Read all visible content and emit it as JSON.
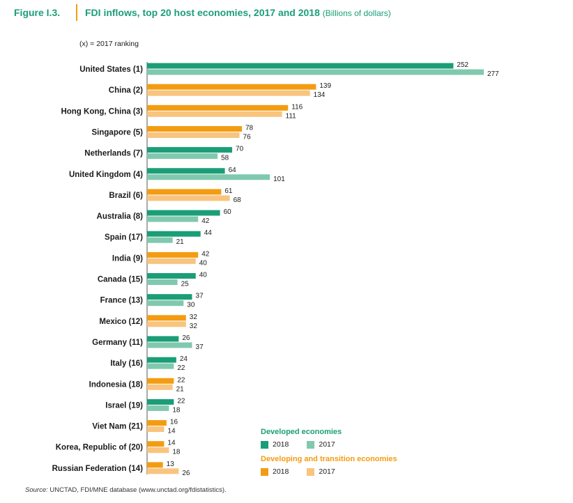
{
  "figure": {
    "label": "Figure I.3.",
    "title": "FDI inflows, top 20 host economies, 2017 and 2018",
    "units": "(Billions of dollars)"
  },
  "ranking_note": "(x) = 2017 ranking",
  "legend": {
    "developed": {
      "title": "Developed economies",
      "y2018": "2018",
      "y2017": "2017"
    },
    "developing": {
      "title": "Developing and transition economies",
      "y2018": "2018",
      "y2017": "2017"
    }
  },
  "source": {
    "label": "Source:",
    "text": " UNCTAD, FDI/MNE database (www.unctad.org/fdistatistics)."
  },
  "colors": {
    "developed_2018": "#1b9e77",
    "developed_2017": "#80c9ae",
    "developing_2018": "#f39c12",
    "developing_2017": "#f8c47e",
    "title": "#1b9e77",
    "separator": "#f39c12",
    "legend_developed": "#1b9e77",
    "legend_developing": "#f39c12"
  },
  "chart_data": {
    "type": "bar",
    "orientation": "horizontal",
    "title": "FDI inflows, top 20 host economies, 2017 and 2018",
    "units": "Billions of dollars",
    "categories": [
      "United States (1)",
      "China (2)",
      "Hong Kong, China (3)",
      "Singapore (5)",
      "Netherlands (7)",
      "United Kingdom (4)",
      "Brazil (6)",
      "Australia (8)",
      "Spain (17)",
      "India (9)",
      "Canada (15)",
      "France (13)",
      "Mexico (12)",
      "Germany (11)",
      "Italy (16)",
      "Indonesia (18)",
      "Israel (19)",
      "Viet Nam (21)",
      "Korea, Republic of (20)",
      "Russian Federation (14)"
    ],
    "group": [
      "developed",
      "developing",
      "developing",
      "developing",
      "developed",
      "developed",
      "developing",
      "developed",
      "developed",
      "developing",
      "developed",
      "developed",
      "developing",
      "developed",
      "developed",
      "developing",
      "developed",
      "developing",
      "developing",
      "developing"
    ],
    "series": [
      {
        "name": "2018",
        "values": [
          252,
          139,
          116,
          78,
          70,
          64,
          61,
          60,
          44,
          42,
          40,
          37,
          32,
          26,
          24,
          22,
          22,
          16,
          14,
          13
        ]
      },
      {
        "name": "2017",
        "values": [
          277,
          134,
          111,
          76,
          58,
          101,
          68,
          42,
          21,
          40,
          25,
          30,
          32,
          37,
          22,
          21,
          18,
          14,
          18,
          26
        ]
      }
    ],
    "xlim": [
      0,
      277
    ],
    "grid": false,
    "legend_position": "bottom-right"
  }
}
